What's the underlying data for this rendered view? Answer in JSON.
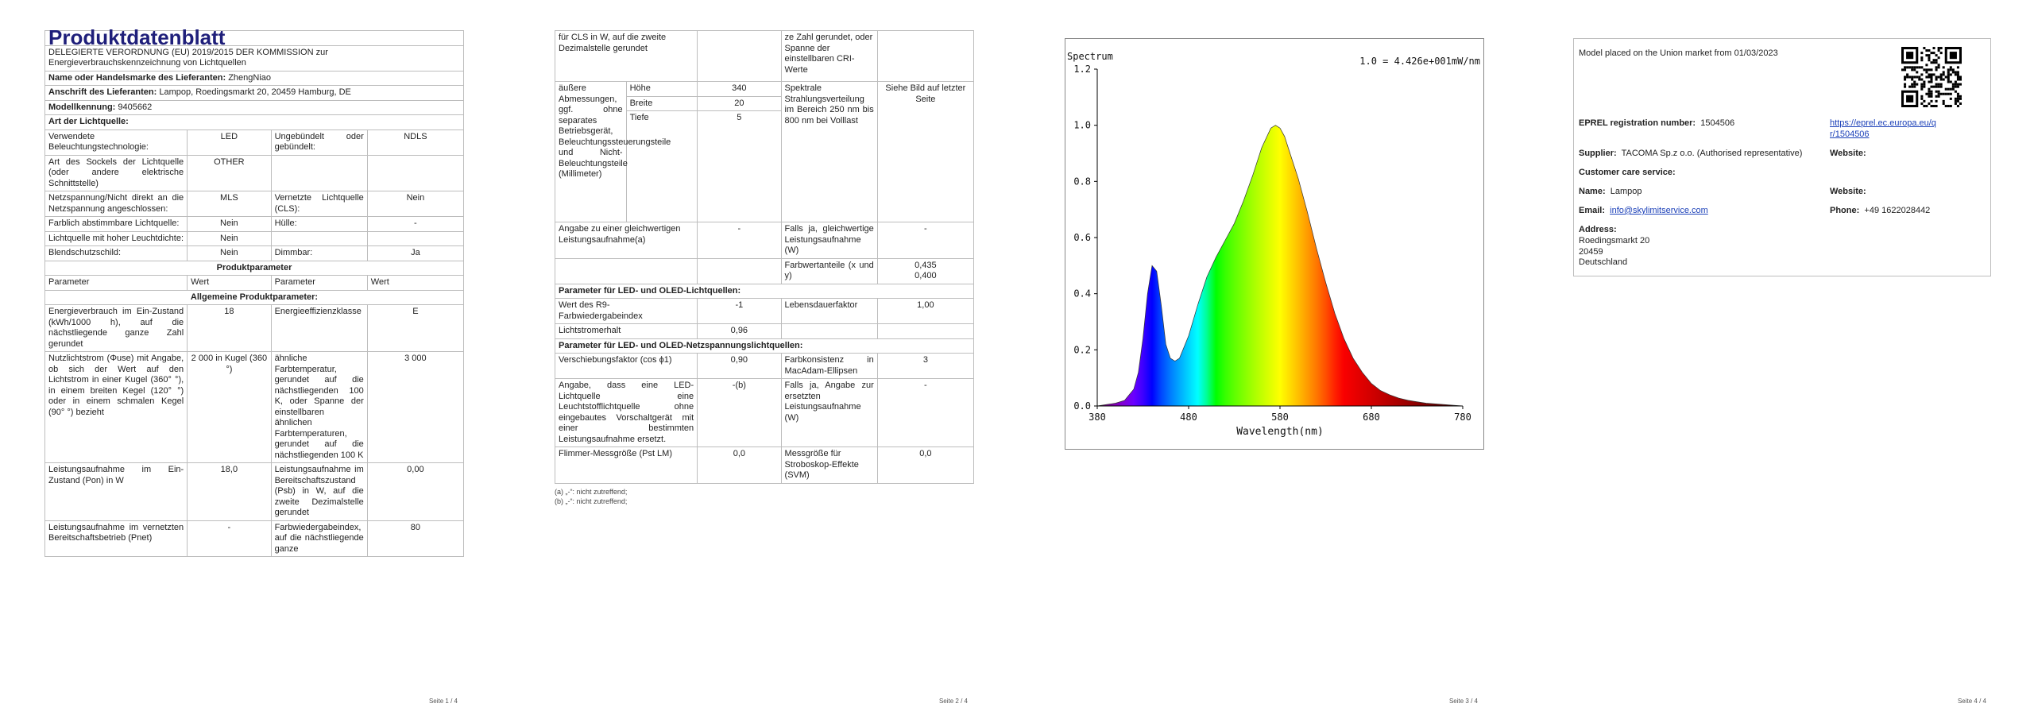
{
  "p1": {
    "title": "Produktdatenblatt",
    "subtitle": "DELEGIERTE VERORDNUNG (EU) 2019/2015 DER KOMMISSION zur Energieverbrauchskennzeichnung von Lichtquellen",
    "supplier_label": "Name oder Handelsmarke des Lieferanten:",
    "supplier_value": "ZhengNiao",
    "address_label": "Anschrift des Lieferanten:",
    "address_value": "Lampop, Roedingsmarkt 20, 20459 Hamburg, DE",
    "model_label": "Modellkennung:",
    "model_value": "9405662",
    "lightsource_header": "Art der Lichtquelle:",
    "rows": [
      {
        "a": "Verwendete Beleuchtungstechnologie:",
        "b": "LED",
        "c": "Ungebündelt oder gebündelt:",
        "d": "NDLS"
      },
      {
        "a": "Art des Sockels der Lichtquelle (oder andere elektrische Schnittstelle)",
        "b": "OTHER",
        "c": "",
        "d": ""
      },
      {
        "a": "Netzspannung/Nicht direkt an die Netzspannung angeschlossen:",
        "b": "MLS",
        "c": "Vernetzte Lichtquelle (CLS):",
        "d": "Nein"
      },
      {
        "a": "Farblich abstimmbare Lichtquelle:",
        "b": "Nein",
        "c": "Hülle:",
        "d": "-"
      },
      {
        "a": "Lichtquelle mit hoher Leuchtdichte:",
        "b": "Nein",
        "c": "",
        "d": ""
      },
      {
        "a": "Blendschutzschild:",
        "b": "Nein",
        "c": "Dimmbar:",
        "d": "Ja"
      }
    ],
    "product_params_header": "Produktparameter",
    "param_head": {
      "a": "Parameter",
      "b": "Wert",
      "c": "Parameter",
      "d": "Wert"
    },
    "general_header": "Allgemeine Produktparameter:",
    "general_rows": [
      {
        "a": "Energieverbrauch im Ein-Zustand (kWh/1000 h), auf die nächstliegende ganze Zahl gerundet",
        "b": "18",
        "c": "Energieeffizienzklasse",
        "d": "E"
      },
      {
        "a": "Nutzlichtstrom (Φuse) mit Angabe, ob sich der Wert auf den Lichtstrom in einer Kugel (360° °), in einem breiten Kegel (120° °) oder in einem schmalen Kegel (90° °) bezieht",
        "b": "2 000 in Kugel (360 °)",
        "c": "ähnliche Farbtemperatur, gerundet auf die nächstliegenden 100 K, oder Spanne der einstellbaren ähnlichen Farbtemperaturen, gerundet auf die nächstliegenden 100 K",
        "d": "3 000"
      },
      {
        "a": "Leistungsaufnahme im Ein-Zustand (Pon) in W",
        "b": "18,0",
        "c": "Leistungsaufnahme im Bereitschaftszustand (Psb) in W, auf die zweite Dezimalstelle gerundet",
        "d": "0,00"
      },
      {
        "a": "Leistungsaufnahme im vernetzten Bereitschaftsbetrieb (Pnet)",
        "b": "-",
        "c": "Farbwiedergabeindex, auf die nächstliegende ganze",
        "d": "80"
      }
    ],
    "footer": "Seite 1 / 4"
  },
  "p2": {
    "cont_a": "für CLS in W, auf die zweite Dezimalstelle gerundet",
    "cont_c": "ze Zahl gerundet, oder Spanne der einstellbaren CRI-Werte",
    "dims_label": "äußere Abmessungen, ggf. ohne separates Betriebsgerät, Beleuchtungssteuerungsteile und Nicht-Beleuchtungsteile (Millimeter)",
    "dims": [
      {
        "k": "Höhe",
        "v": "340"
      },
      {
        "k": "Breite",
        "v": "20"
      },
      {
        "k": "Tiefe",
        "v": "5"
      }
    ],
    "spectral_label": "Spektrale Strahlungsverteilung im Bereich 250 nm bis 800 nm bei Volllast",
    "spectral_value": "Siehe Bild auf letzter Seite",
    "equiv_label": "Angabe zu einer gleichwertigen Leistungsaufnahme(a)",
    "equiv_value": "-",
    "equiv_yes_label": "Falls ja, gleichwertige Leistungsaufnahme (W)",
    "equiv_yes_value": "-",
    "chroma_label": "Farbwertanteile (x und y)",
    "chroma_value_x": "0,435",
    "chroma_value_y": "0,400",
    "led_header": "Parameter für LED- und OLED-Lichtquellen:",
    "r9_label": "Wert des R9-Farbwiedergabeindex",
    "r9_value": "-1",
    "survival_label": "Lebensdauerfaktor",
    "survival_value": "1,00",
    "lumen_label": "Lichtstromerhalt",
    "lumen_value": "0,96",
    "mains_header": "Parameter für LED- und OLED-Netzspannungslichtquellen:",
    "cos_label": "Verschiebungsfaktor (cos ϕ1)",
    "cos_value": "0,90",
    "macadam_label": "Farbkonsistenz in MacAdam-Ellipsen",
    "macadam_value": "3",
    "replace_label": "Angabe, dass eine LED-Lichtquelle eine Leuchtstofflichtquelle ohne eingebautes Vorschaltgerät mit einer bestimmten Leistungsaufnahme ersetzt.",
    "replace_value": "-(b)",
    "replace_yes_label": "Falls ja, Angabe zur ersetzten Leistungsaufnahme (W)",
    "replace_yes_value": "-",
    "flicker_label": "Flimmer-Messgröße (Pst LM)",
    "flicker_value": "0,0",
    "strobo_label": "Messgröße für Stroboskop-Effekte (SVM)",
    "strobo_value": "0,0",
    "note_a": "(a) „-“: nicht zutreffend;",
    "note_b": "(b) „-“: nicht zutreffend;",
    "footer": "Seite 2 / 4"
  },
  "p3": {
    "footer": "Seite 3 / 4"
  },
  "chart_data": {
    "type": "area",
    "title": "Spectrum",
    "annotation": "1.0 = 4.426e+001mW/nm",
    "xlabel": "Wavelength(nm)",
    "ylabel": "",
    "xlim": [
      380,
      780
    ],
    "ylim": [
      0,
      1.2
    ],
    "xticks": [
      "380",
      "480",
      "580",
      "680",
      "780"
    ],
    "yticks": [
      "0.0",
      "0.2",
      "0.4",
      "0.6",
      "0.8",
      "1.0",
      "1.2"
    ],
    "grid": false,
    "series": [
      {
        "x": [
          380,
          400,
          410,
          420,
          425,
          430,
          435,
          440,
          445,
          450,
          455,
          460,
          465,
          470,
          480,
          490,
          500,
          510,
          520,
          530,
          540,
          550,
          560,
          570,
          575,
          580,
          585,
          590,
          600,
          610,
          620,
          630,
          640,
          650,
          660,
          670,
          680,
          690,
          700,
          710,
          720,
          740,
          760,
          780
        ],
        "y": [
          0.0,
          0.01,
          0.02,
          0.06,
          0.12,
          0.24,
          0.4,
          0.5,
          0.48,
          0.36,
          0.22,
          0.17,
          0.16,
          0.17,
          0.25,
          0.36,
          0.46,
          0.53,
          0.59,
          0.65,
          0.73,
          0.82,
          0.92,
          0.99,
          1.0,
          0.99,
          0.96,
          0.91,
          0.81,
          0.69,
          0.56,
          0.44,
          0.33,
          0.24,
          0.17,
          0.12,
          0.08,
          0.055,
          0.04,
          0.028,
          0.02,
          0.01,
          0.005,
          0.0
        ]
      }
    ]
  },
  "p4": {
    "placed": "Model placed on the Union market from 01/03/2023",
    "eprel_label": "EPREL registration number:",
    "eprel_value": "1504506",
    "eprel_link": "https://eprel.ec.europa.eu/qr/1504506",
    "supplier_label": "Supplier:",
    "supplier_value": "TACOMA Sp.z o.o. (Authorised representative)",
    "website_label": "Website:",
    "care_label": "Customer care service:",
    "name_label": "Name:",
    "name_value": "Lampop",
    "website2_label": "Website:",
    "email_label": "Email:",
    "email_value": "info@skylimitservice.com",
    "phone_label": "Phone:",
    "phone_value": "+49 1622028442",
    "address_label": "Address:",
    "address_lines": [
      "Roedingsmarkt 20",
      "20459",
      "Deutschland"
    ],
    "footer": "Seite 4 / 4"
  }
}
